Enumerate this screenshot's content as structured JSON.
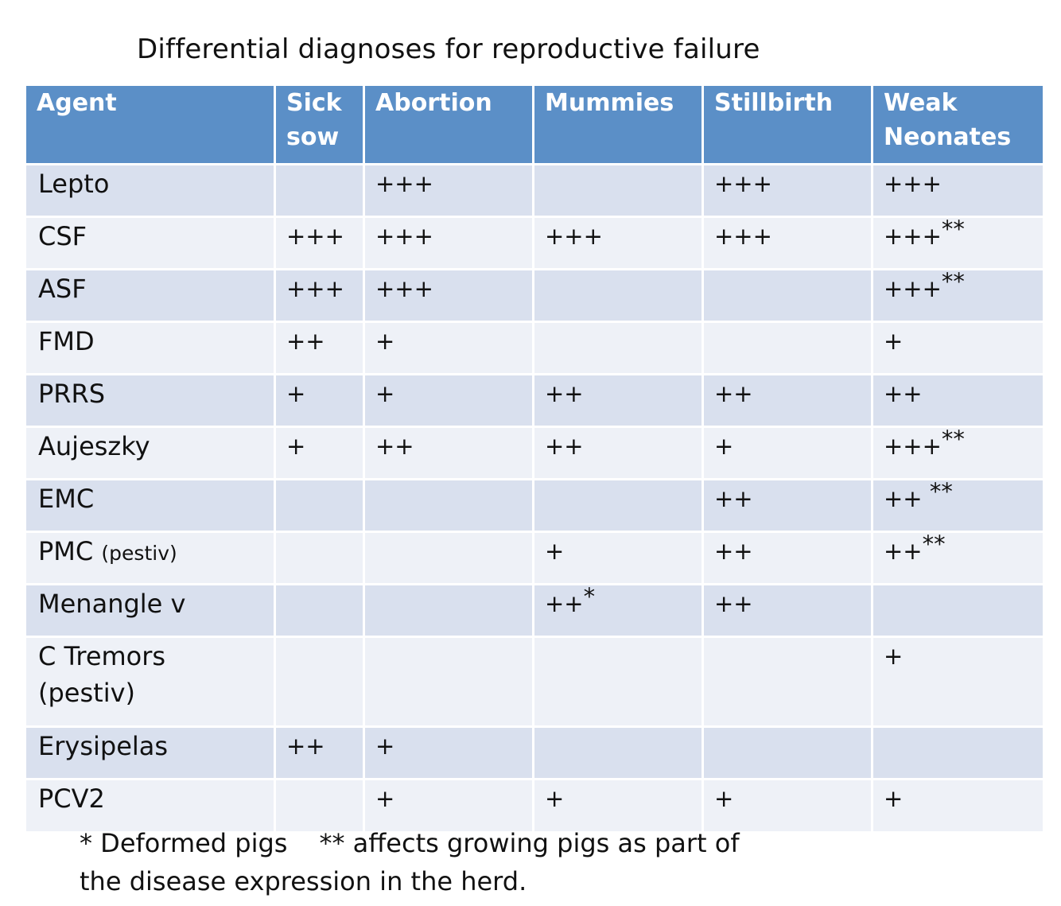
{
  "title": "Differential diagnoses for reproductive failure",
  "colors": {
    "header_bg": "#5b8fc7",
    "row_odd": "#d9e0ee",
    "row_even": "#eef1f7"
  },
  "table": {
    "headers": [
      "Agent",
      "Sick sow",
      "Abortion",
      "Mummies",
      "Stillbirth",
      "Weak Neonates"
    ],
    "rows": [
      {
        "agent": "Lepto",
        "sick_sow": "",
        "abortion": "+++",
        "mummies": "",
        "stillbirth": "+++",
        "weak": "+++",
        "weak_mark": ""
      },
      {
        "agent": "CSF",
        "sick_sow": "+++",
        "abortion": "+++",
        "mummies": "+++",
        "stillbirth": "+++",
        "weak": "+++",
        "weak_mark": "**"
      },
      {
        "agent": "ASF",
        "sick_sow": "+++",
        "abortion": "+++",
        "mummies": "",
        "stillbirth": "",
        "weak": "+++",
        "weak_mark": "**"
      },
      {
        "agent": "FMD",
        "sick_sow": "++",
        "abortion": "+",
        "mummies": "",
        "stillbirth": "",
        "weak": "+",
        "weak_mark": ""
      },
      {
        "agent": "PRRS",
        "sick_sow": "+",
        "abortion": "+",
        "mummies": "++",
        "stillbirth": "++",
        "weak": "++",
        "weak_mark": ""
      },
      {
        "agent": "Aujeszky",
        "sick_sow": "+",
        "abortion": "++",
        "mummies": "++",
        "stillbirth": "+",
        "weak": "+++",
        "weak_mark": "**"
      },
      {
        "agent": "EMC",
        "sick_sow": "",
        "abortion": "",
        "mummies": "",
        "stillbirth": "++",
        "weak": "++ ",
        "weak_mark": "**"
      },
      {
        "agent": "PMC",
        "agent_note": "(pestiv)",
        "sick_sow": "",
        "abortion": "",
        "mummies": "+",
        "stillbirth": "++",
        "weak": "++",
        "weak_mark": "**"
      },
      {
        "agent": "Menangle v",
        "sick_sow": "",
        "abortion": "",
        "mummies": "++",
        "mummies_mark": "*",
        "stillbirth": "++",
        "weak": "",
        "weak_mark": ""
      },
      {
        "agent": "C Tremors",
        "agent_line2": "(pestiv)",
        "sick_sow": "",
        "abortion": "",
        "mummies": "",
        "stillbirth": "",
        "weak": "+",
        "weak_mark": ""
      },
      {
        "agent": "Erysipelas",
        "sick_sow": "++",
        "abortion": "+",
        "mummies": "",
        "stillbirth": "",
        "weak": "",
        "weak_mark": ""
      },
      {
        "agent": "PCV2",
        "sick_sow": "",
        "abortion": "+",
        "mummies": "+",
        "stillbirth": "+",
        "weak": "+",
        "weak_mark": ""
      }
    ]
  },
  "footnote": {
    "part1": "* Deformed pigs",
    "part2": "** affects growing pigs as part of",
    "line2": "the disease expression in the herd."
  }
}
